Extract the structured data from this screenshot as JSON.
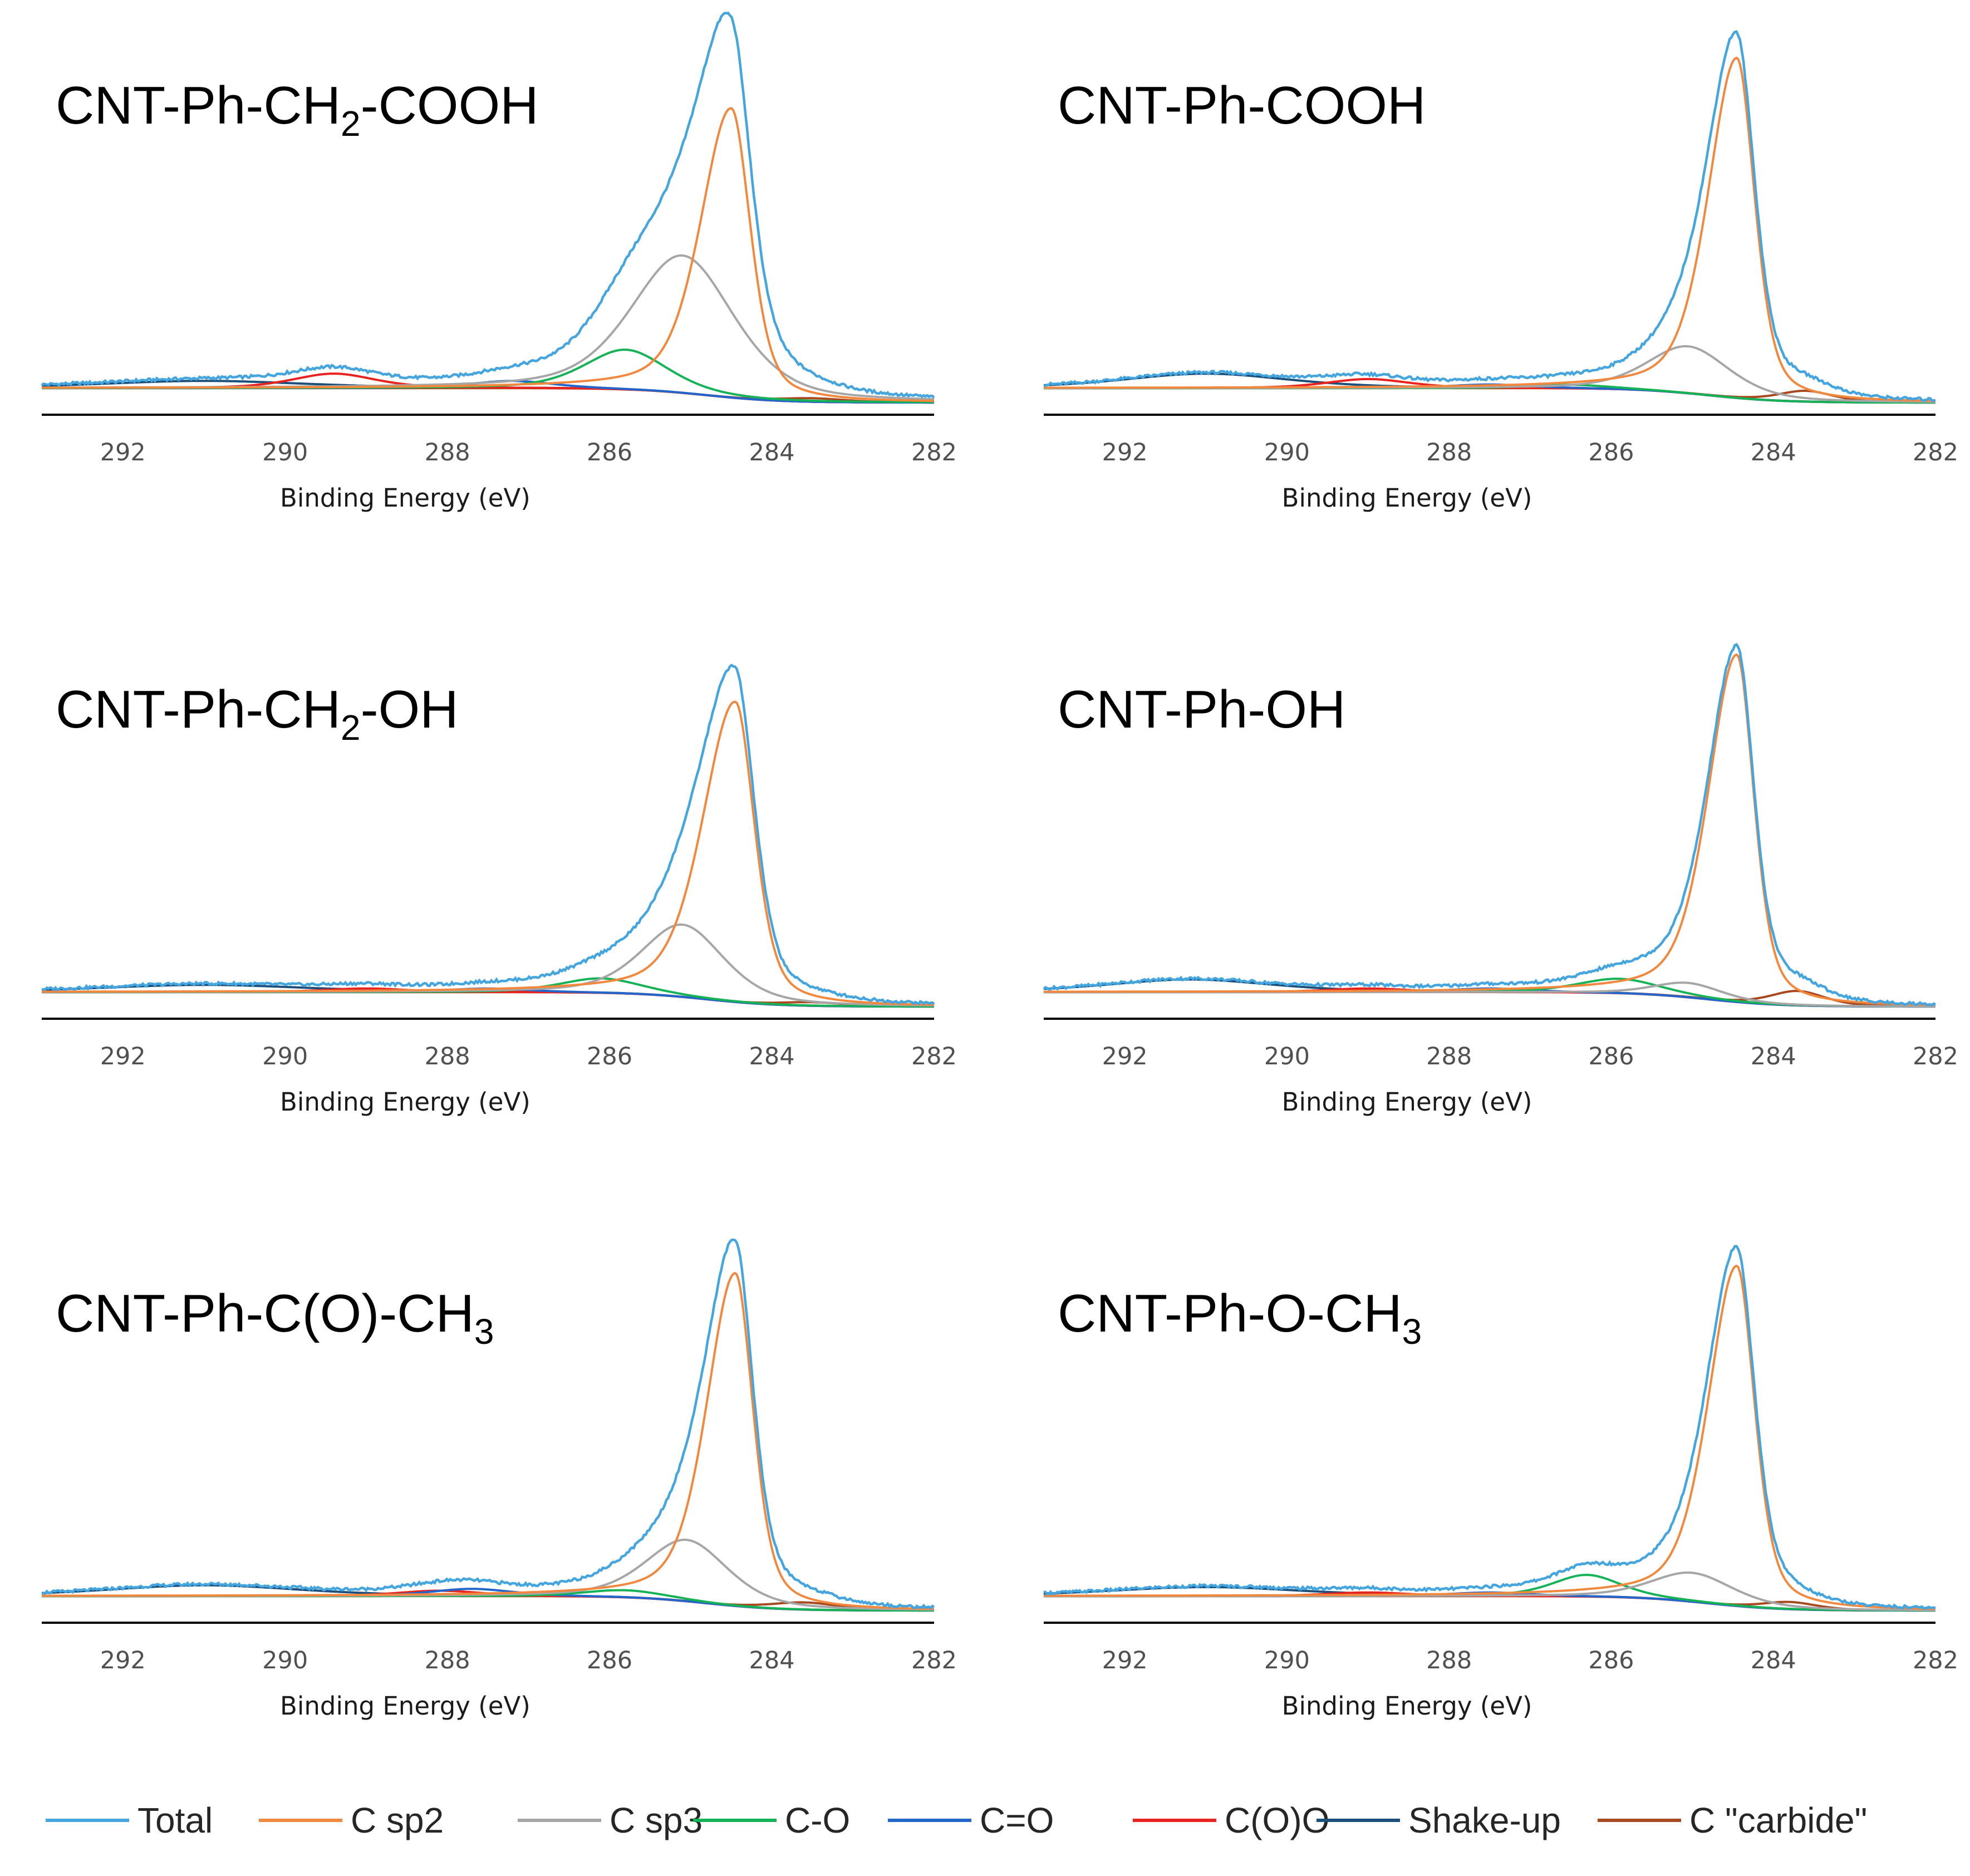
{
  "chart_data": {
    "type": "line",
    "xlabel": "Binding Energy (eV)",
    "xlim": [
      293,
      282
    ],
    "x_reversed": true,
    "xticks": [
      292,
      290,
      288,
      286,
      284,
      282
    ],
    "ylim": [
      0,
      1.05
    ],
    "grid": false,
    "legend_position": "bottom",
    "legend": [
      {
        "key": "total",
        "name": "Total",
        "color": "#45a5de"
      },
      {
        "key": "sp2",
        "name": "C sp2",
        "color": "#f2873e"
      },
      {
        "key": "sp3",
        "name": "C sp3",
        "color": "#a6a6a6"
      },
      {
        "key": "co",
        "name": "C-O",
        "color": "#15b355"
      },
      {
        "key": "cdo",
        "name": "C=O",
        "color": "#2266cc"
      },
      {
        "key": "coo",
        "name": "C(O)O",
        "color": "#e8231f"
      },
      {
        "key": "shake",
        "name": "Shake-up",
        "color": "#1b4f7a"
      },
      {
        "key": "carb",
        "name": "C \"carbide\"",
        "color": "#a8481e"
      }
    ],
    "panels": [
      {
        "id": "cooh-ch2",
        "title": {
          "pre": "CNT-Ph-CH",
          "sub": "2",
          "post": "-COOH"
        },
        "components": {
          "sp2": {
            "pos": 284.5,
            "amp": 0.8,
            "wl": 0.45,
            "wr": 0.28
          },
          "sp3": {
            "pos": 285.1,
            "amp": 0.38,
            "wl": 0.75,
            "wr": 0.75
          },
          "co": {
            "pos": 285.8,
            "amp": 0.11,
            "wl": 0.6,
            "wr": 0.6
          },
          "cdo": {
            "pos": 287.2,
            "amp": 0.02,
            "wl": 0.6,
            "wr": 0.6
          },
          "coo": {
            "pos": 289.4,
            "amp": 0.04,
            "wl": 0.6,
            "wr": 0.6
          },
          "shake": {
            "pos": 291.0,
            "amp": 0.02,
            "wl": 1.5,
            "wr": 1.5
          },
          "carb": {
            "pos": 283.5,
            "amp": 0.01,
            "wl": 0.5,
            "wr": 0.5
          }
        }
      },
      {
        "id": "cooh",
        "title": {
          "pre": "CNT-Ph-COOH",
          "sub": "",
          "post": ""
        },
        "components": {
          "sp2": {
            "pos": 284.45,
            "amp": 0.94,
            "wl": 0.42,
            "wr": 0.26
          },
          "sp3": {
            "pos": 285.05,
            "amp": 0.13,
            "wl": 0.6,
            "wr": 0.6
          },
          "co": {
            "pos": 286.5,
            "amp": 0.01,
            "wl": 0.6,
            "wr": 0.6
          },
          "cdo": {
            "pos": 287.5,
            "amp": 0.01,
            "wl": 0.6,
            "wr": 0.6
          },
          "coo": {
            "pos": 289.0,
            "amp": 0.025,
            "wl": 0.6,
            "wr": 0.6
          },
          "shake": {
            "pos": 291.0,
            "amp": 0.04,
            "wl": 1.2,
            "wr": 1.2
          },
          "carb": {
            "pos": 283.6,
            "amp": 0.03,
            "wl": 0.4,
            "wr": 0.4
          }
        }
      },
      {
        "id": "oh-ch2",
        "title": {
          "pre": "CNT-Ph-CH",
          "sub": "2",
          "post": "-OH"
        },
        "components": {
          "sp2": {
            "pos": 284.45,
            "amp": 0.83,
            "wl": 0.48,
            "wr": 0.28
          },
          "sp3": {
            "pos": 285.1,
            "amp": 0.2,
            "wl": 0.6,
            "wr": 0.6
          },
          "co": {
            "pos": 286.1,
            "amp": 0.04,
            "wl": 0.6,
            "wr": 0.6
          },
          "cdo": {
            "pos": 287.5,
            "amp": 0.01,
            "wl": 0.6,
            "wr": 0.6
          },
          "coo": {
            "pos": 289.0,
            "amp": 0.01,
            "wl": 0.6,
            "wr": 0.6
          },
          "shake": {
            "pos": 291.0,
            "amp": 0.02,
            "wl": 1.5,
            "wr": 1.5
          },
          "carb": {
            "pos": 283.5,
            "amp": 0.01,
            "wl": 0.5,
            "wr": 0.5
          }
        }
      },
      {
        "id": "oh",
        "title": {
          "pre": "CNT-Ph-OH",
          "sub": "",
          "post": ""
        },
        "components": {
          "sp2": {
            "pos": 284.45,
            "amp": 0.96,
            "wl": 0.42,
            "wr": 0.25
          },
          "sp3": {
            "pos": 285.05,
            "amp": 0.04,
            "wl": 0.5,
            "wr": 0.5
          },
          "co": {
            "pos": 285.9,
            "amp": 0.04,
            "wl": 0.6,
            "wr": 0.6
          },
          "cdo": {
            "pos": 287.5,
            "amp": 0.01,
            "wl": 0.6,
            "wr": 0.6
          },
          "coo": {
            "pos": 289.0,
            "amp": 0.01,
            "wl": 0.6,
            "wr": 0.6
          },
          "shake": {
            "pos": 291.2,
            "amp": 0.035,
            "wl": 1.2,
            "wr": 1.2
          },
          "carb": {
            "pos": 283.7,
            "amp": 0.04,
            "wl": 0.4,
            "wr": 0.4
          }
        }
      },
      {
        "id": "coch3",
        "title": {
          "pre": "CNT-Ph-C(O)-CH",
          "sub": "3",
          "post": ""
        },
        "components": {
          "sp2": {
            "pos": 284.45,
            "amp": 0.92,
            "wl": 0.42,
            "wr": 0.26
          },
          "sp3": {
            "pos": 285.05,
            "amp": 0.17,
            "wl": 0.6,
            "wr": 0.6
          },
          "co": {
            "pos": 285.8,
            "amp": 0.02,
            "wl": 0.6,
            "wr": 0.6
          },
          "cdo": {
            "pos": 287.7,
            "amp": 0.02,
            "wl": 0.6,
            "wr": 0.6
          },
          "coo": {
            "pos": 288.1,
            "amp": 0.015,
            "wl": 0.6,
            "wr": 0.6
          },
          "shake": {
            "pos": 291.0,
            "amp": 0.03,
            "wl": 1.4,
            "wr": 1.4
          },
          "carb": {
            "pos": 283.6,
            "amp": 0.02,
            "wl": 0.5,
            "wr": 0.5
          }
        }
      },
      {
        "id": "och3",
        "title": {
          "pre": "CNT-Ph-O-CH",
          "sub": "3",
          "post": ""
        },
        "components": {
          "sp2": {
            "pos": 284.45,
            "amp": 0.94,
            "wl": 0.42,
            "wr": 0.26
          },
          "sp3": {
            "pos": 285.0,
            "amp": 0.08,
            "wl": 0.6,
            "wr": 0.6
          },
          "co": {
            "pos": 286.3,
            "amp": 0.06,
            "wl": 0.5,
            "wr": 0.5
          },
          "cdo": {
            "pos": 287.5,
            "amp": 0.01,
            "wl": 0.6,
            "wr": 0.6
          },
          "coo": {
            "pos": 289.0,
            "amp": 0.01,
            "wl": 0.6,
            "wr": 0.6
          },
          "shake": {
            "pos": 291.0,
            "amp": 0.025,
            "wl": 1.4,
            "wr": 1.4
          },
          "carb": {
            "pos": 283.8,
            "amp": 0.02,
            "wl": 0.4,
            "wr": 0.4
          }
        }
      }
    ]
  }
}
